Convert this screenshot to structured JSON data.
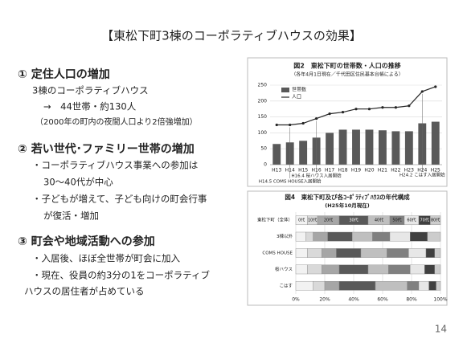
{
  "title": "【東松下町3棟のコーポラティブハウスの効果】",
  "sections": [
    {
      "heading": "① 定住人口の増加",
      "lines": [
        "3棟のコーポラティブハウス",
        "→　44世帯・約130人",
        "（2000年の町内の夜間人口より2倍強増加）"
      ]
    },
    {
      "heading": "② 若い世代･ファミリー世帯の増加",
      "lines": [
        "・コーポラティブハウス事業への参加は",
        "30～40代が中心",
        "・子どもが増えて、子ども向けの町会行事",
        "が復活・増加"
      ]
    },
    {
      "heading": "③ 町会や地域活動への参加",
      "lines": [
        "・入居後、ほぼ全世帯が町会に加入",
        "・現在、役員の約3分の1をコーポラティブ",
        "ハウスの居住者が占めている"
      ]
    }
  ],
  "page_number": "14",
  "chart_data": [
    {
      "type": "combo",
      "title": "図2　東松下町の世帯数・人口の推移",
      "subtitle": "（各年4月1日現在／千代田区住民基本台帳による）",
      "categories": [
        "H13",
        "H14",
        "H15",
        "H16",
        "H17",
        "H18",
        "H19",
        "H20",
        "H21",
        "H22",
        "H23",
        "H24",
        "H25"
      ],
      "series": [
        {
          "name": "世帯数",
          "type": "bar",
          "color": "#595959",
          "values": [
            65,
            70,
            75,
            85,
            100,
            110,
            110,
            110,
            108,
            105,
            105,
            130,
            135
          ]
        },
        {
          "name": "人口",
          "type": "line",
          "color": "#262626",
          "values": [
            125,
            125,
            130,
            145,
            160,
            165,
            175,
            175,
            180,
            180,
            185,
            230,
            245
          ]
        }
      ],
      "ylim": [
        0,
        250
      ],
      "yticks": [
        0,
        50,
        100,
        150,
        200,
        250
      ],
      "grid": true,
      "legend": "upper-left",
      "annotations": [
        "H14.5 COMS HOUSE入居開始",
        "H16.4 桜ハウス入居開始",
        "H24.2 こはす入居開始"
      ]
    },
    {
      "type": "stacked-barh",
      "title": "図4　東松下町及び各ｺｰﾎﾟﾗﾃｨﾌﾞﾊｳｽの年代構成",
      "subtitle": "(H25年10月現在)",
      "categories": [
        "東松下町（全体）",
        "3棟以外",
        "COMS HOUSE",
        "桜ハウス",
        "こはす"
      ],
      "series": [
        {
          "name": "0代",
          "color": "#f2f2f2",
          "values": [
            8,
            7,
            8,
            8,
            12
          ]
        },
        {
          "name": "10代",
          "color": "#d9d9d9",
          "values": [
            7,
            5,
            10,
            10,
            8
          ]
        },
        {
          "name": "20代",
          "color": "#a6a6a6",
          "values": [
            15,
            10,
            10,
            12,
            10
          ]
        },
        {
          "name": "30代",
          "color": "#595959",
          "values": [
            20,
            17,
            17,
            20,
            25
          ]
        },
        {
          "name": "40代",
          "color": "#bfbfbf",
          "values": [
            15,
            14,
            18,
            14,
            22
          ]
        },
        {
          "name": "50代",
          "color": "#808080",
          "values": [
            10,
            12,
            15,
            15,
            8
          ]
        },
        {
          "name": "60代",
          "color": "#e7e7e7",
          "values": [
            10,
            14,
            12,
            10,
            7
          ]
        },
        {
          "name": "70代",
          "color": "#404040",
          "values": [
            8,
            12,
            6,
            7,
            5
          ]
        },
        {
          "name": "80代",
          "color": "#cccccc",
          "values": [
            7,
            9,
            4,
            4,
            3
          ]
        }
      ],
      "xlim": [
        0,
        100
      ],
      "xticks": [
        {
          "value": 0,
          "label": "0%"
        },
        {
          "value": 20,
          "label": "20%"
        },
        {
          "value": 40,
          "label": "40%"
        },
        {
          "value": 60,
          "label": "60%"
        },
        {
          "value": 80,
          "label": "80%"
        },
        {
          "value": 100,
          "label": "100%"
        }
      ]
    }
  ]
}
